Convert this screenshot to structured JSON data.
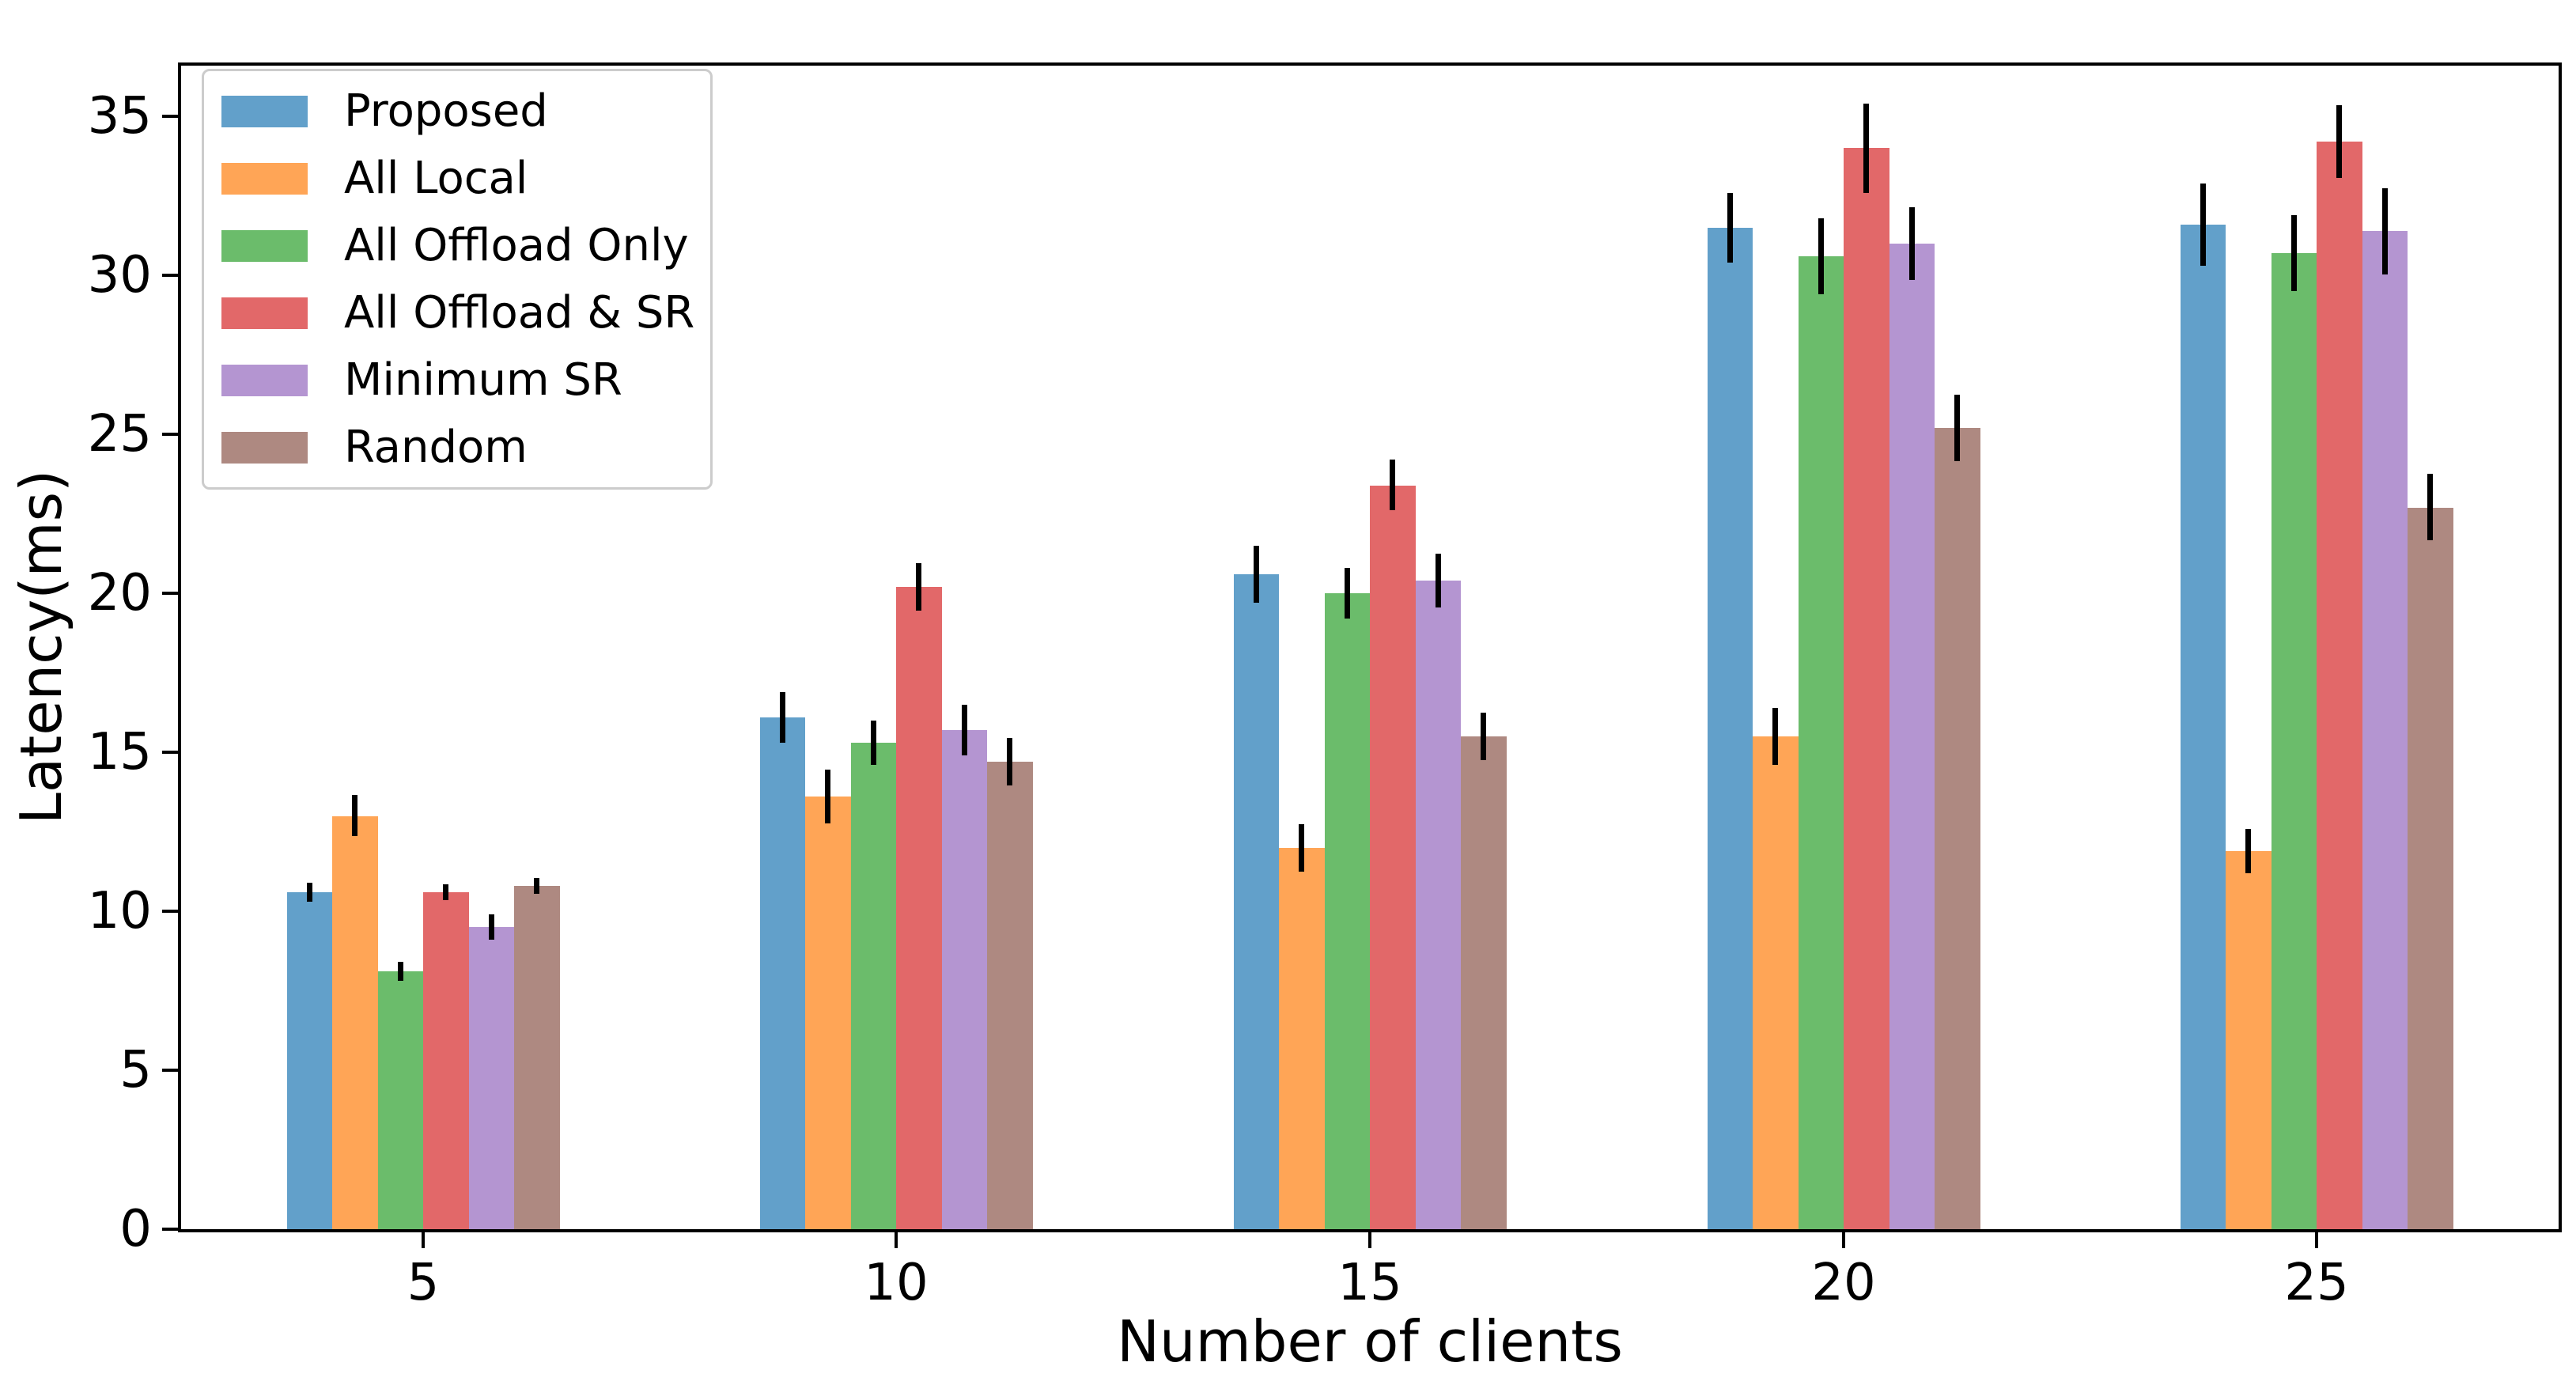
{
  "axes": {
    "ylabel": "Latency(ms)",
    "xlabel": "Number of clients",
    "yticks": [
      0,
      5,
      10,
      15,
      20,
      25,
      30,
      35
    ],
    "ymax": 36.6,
    "xticklabels": [
      "5",
      "10",
      "15",
      "20",
      "25"
    ]
  },
  "chart_data": {
    "type": "bar",
    "title": "",
    "xlabel": "Number of clients",
    "ylabel": "Latency(ms)",
    "categories": [
      5,
      10,
      15,
      20,
      25
    ],
    "ylim": [
      0,
      36.6
    ],
    "grid": false,
    "legend_position": "upper left",
    "error_bars": true,
    "bar_color_alpha": 0.7,
    "error_bar_color": "#000000",
    "series": [
      {
        "name": "Proposed",
        "color": "#62a0ca",
        "values": [
          10.6,
          16.1,
          20.6,
          31.5,
          31.6
        ],
        "errors": [
          0.3,
          0.8,
          0.9,
          1.1,
          1.3
        ]
      },
      {
        "name": "All Local",
        "color": "#ffa556",
        "values": [
          13.0,
          13.6,
          12.0,
          15.5,
          11.9
        ],
        "errors": [
          0.65,
          0.85,
          0.75,
          0.9,
          0.7
        ]
      },
      {
        "name": "All Offload Only",
        "color": "#6bbc6b",
        "values": [
          8.1,
          15.3,
          20.0,
          30.6,
          30.7
        ],
        "errors": [
          0.3,
          0.7,
          0.8,
          1.2,
          1.2
        ]
      },
      {
        "name": "All Offload & SR",
        "color": "#e26869",
        "values": [
          10.6,
          20.2,
          23.4,
          34.0,
          34.2
        ],
        "errors": [
          0.25,
          0.75,
          0.8,
          1.4,
          1.15
        ]
      },
      {
        "name": "Minimum SR",
        "color": "#b495d1",
        "values": [
          9.5,
          15.7,
          20.4,
          31.0,
          31.4
        ],
        "errors": [
          0.4,
          0.8,
          0.85,
          1.15,
          1.35
        ]
      },
      {
        "name": "Random",
        "color": "#ae8981",
        "values": [
          10.8,
          14.7,
          15.5,
          25.2,
          22.7
        ],
        "errors": [
          0.25,
          0.75,
          0.75,
          1.05,
          1.05
        ]
      }
    ]
  }
}
